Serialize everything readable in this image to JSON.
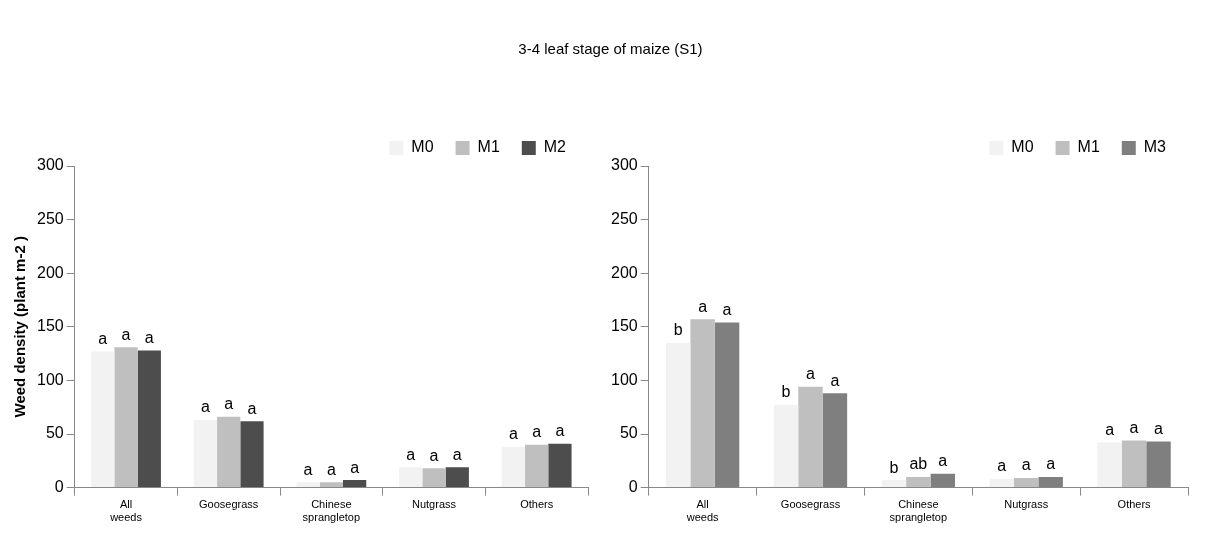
{
  "chart_data": [
    {
      "type": "bar",
      "title": "3-4 leaf stage of maize (S1)",
      "ylabel": "Weed density (plant m-2 )",
      "categories": [
        "All weeds",
        "Goosegrass",
        "Chinese sprangletop",
        "Nutgrass",
        "Others"
      ],
      "ylim": [
        0,
        300
      ],
      "yticks": [
        0,
        50,
        100,
        150,
        200,
        250,
        300
      ],
      "grid": false,
      "legend": "top right",
      "series": [
        {
          "name": "M0",
          "color": "#f2f2f2",
          "values": [
            127,
            63,
            5,
            19,
            38
          ],
          "value_labels": [
            "a",
            "a",
            "a",
            "a",
            "a"
          ]
        },
        {
          "name": "M1",
          "color": "#bfbfbf",
          "values": [
            131,
            66,
            5,
            18,
            40
          ],
          "value_labels": [
            "a",
            "a",
            "a",
            "a",
            "a"
          ]
        },
        {
          "name": "M2",
          "color": "#4d4d4d",
          "values": [
            128,
            62,
            7,
            19,
            41
          ],
          "value_labels": [
            "a",
            "a",
            "a",
            "a",
            "a"
          ]
        }
      ]
    },
    {
      "type": "bar",
      "categories": [
        "All weeds",
        "Goosegrass",
        "Chinese sprangletop",
        "Nutgrass",
        "Others"
      ],
      "ylim": [
        0,
        300
      ],
      "yticks": [
        0,
        50,
        100,
        150,
        200,
        250,
        300
      ],
      "grid": false,
      "legend": "top right",
      "series": [
        {
          "name": "M0",
          "color": "#f2f2f2",
          "values": [
            135,
            77,
            7,
            8,
            42
          ],
          "value_labels": [
            "b",
            "b",
            "b",
            "a",
            "a"
          ]
        },
        {
          "name": "M1",
          "color": "#bfbfbf",
          "values": [
            157,
            94,
            10,
            9,
            44
          ],
          "value_labels": [
            "a",
            "a",
            "ab",
            "a",
            "a"
          ]
        },
        {
          "name": "M3",
          "color": "#7f7f7f",
          "values": [
            154,
            88,
            13,
            10,
            43
          ],
          "value_labels": [
            "a",
            "a",
            "a",
            "a",
            "a"
          ]
        }
      ]
    }
  ]
}
